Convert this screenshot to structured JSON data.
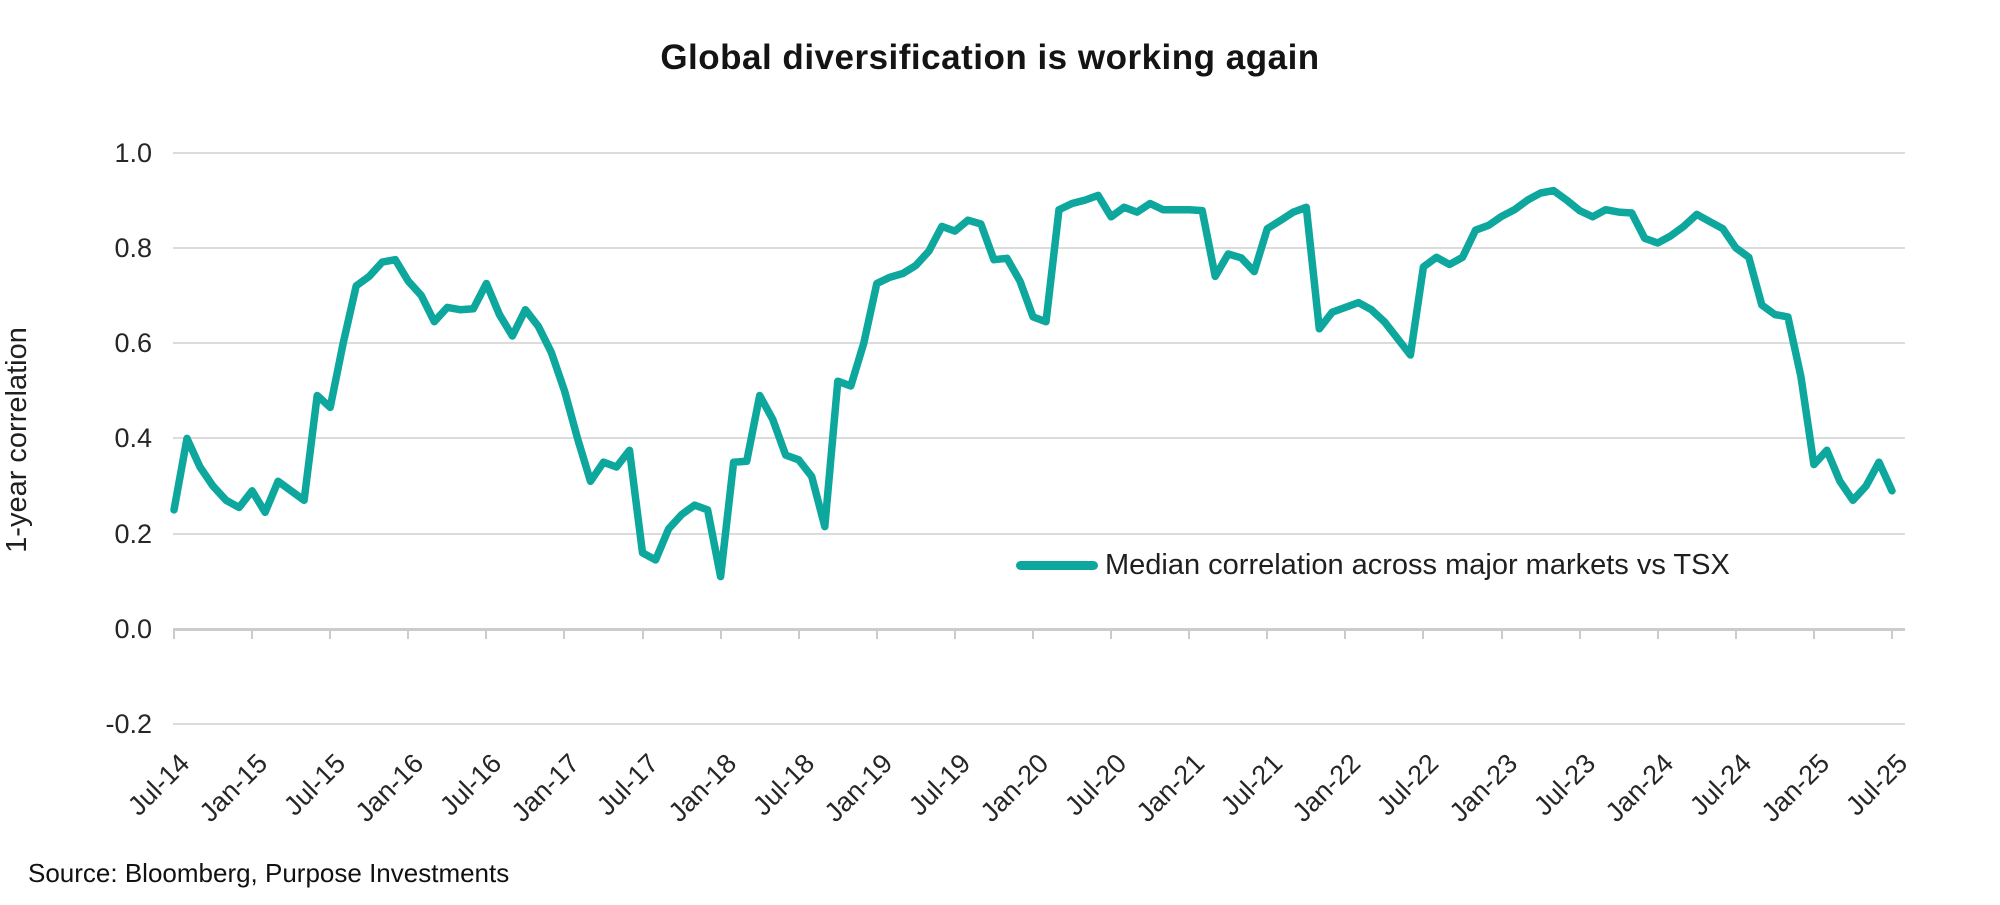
{
  "title": "Global diversification is working again",
  "y_axis": {
    "label": "1-year correlation",
    "tick_labels": [
      "1.0",
      "0.8",
      "0.6",
      "0.4",
      "0.2",
      "0.0",
      "-0.2"
    ]
  },
  "x_axis": {
    "tick_labels": [
      "Jul-14",
      "Jan-15",
      "Jul-15",
      "Jan-16",
      "Jul-16",
      "Jan-17",
      "Jul-17",
      "Jan-18",
      "Jul-18",
      "Jan-19",
      "Jul-19",
      "Jan-20",
      "Jul-20",
      "Jan-21",
      "Jul-21",
      "Jan-22",
      "Jul-22",
      "Jan-23",
      "Jul-23",
      "Jan-24",
      "Jul-24",
      "Jan-25",
      "Jul-25"
    ]
  },
  "legend": {
    "label": "Median correlation across major markets vs TSX",
    "position": "inside-lower-right"
  },
  "source": "Source: Bloomberg, Purpose Investments",
  "colors": {
    "line": "#0ea79d",
    "grid": "#dcdcdc",
    "axis": "#cccccc",
    "text": "#1f1f1f"
  },
  "chart_data": {
    "type": "line",
    "title": "Global diversification is working again",
    "ylabel": "1-year correlation",
    "xlabel": "",
    "ylim": [
      -0.2,
      1.0
    ],
    "y_ticks": [
      1.0,
      0.8,
      0.6,
      0.4,
      0.2,
      0.0,
      -0.2
    ],
    "grid": "horizontal",
    "frequency": "monthly",
    "x_start": "Jul-2014",
    "x_end": "Jul-2025",
    "x_tick_labels": [
      "Jul-14",
      "Jan-15",
      "Jul-15",
      "Jan-16",
      "Jul-16",
      "Jan-17",
      "Jul-17",
      "Jan-18",
      "Jul-18",
      "Jan-19",
      "Jul-19",
      "Jan-20",
      "Jul-20",
      "Jan-21",
      "Jul-21",
      "Jan-22",
      "Jul-22",
      "Jan-23",
      "Jul-23",
      "Jan-24",
      "Jul-24",
      "Jan-25",
      "Jul-25"
    ],
    "series": [
      {
        "name": "Median correlation across major markets vs TSX",
        "values": [
          0.25,
          0.4,
          0.34,
          0.3,
          0.27,
          0.255,
          0.29,
          0.245,
          0.31,
          0.29,
          0.27,
          0.49,
          0.465,
          0.6,
          0.72,
          0.74,
          0.77,
          0.775,
          0.73,
          0.7,
          0.645,
          0.675,
          0.67,
          0.672,
          0.725,
          0.66,
          0.615,
          0.67,
          0.635,
          0.58,
          0.5,
          0.4,
          0.31,
          0.35,
          0.34,
          0.375,
          0.16,
          0.145,
          0.21,
          0.24,
          0.26,
          0.25,
          0.11,
          0.35,
          0.352,
          0.49,
          0.44,
          0.365,
          0.355,
          0.32,
          0.215,
          0.52,
          0.51,
          0.6,
          0.725,
          0.738,
          0.746,
          0.763,
          0.793,
          0.845,
          0.835,
          0.858,
          0.85,
          0.775,
          0.778,
          0.73,
          0.655,
          0.645,
          0.88,
          0.893,
          0.9,
          0.91,
          0.865,
          0.885,
          0.875,
          0.893,
          0.88,
          0.88,
          0.88,
          0.878,
          0.74,
          0.787,
          0.779,
          0.75,
          0.84,
          0.857,
          0.875,
          0.885,
          0.63,
          0.665,
          0.675,
          0.685,
          0.67,
          0.645,
          0.61,
          0.575,
          0.76,
          0.78,
          0.765,
          0.78,
          0.837,
          0.847,
          0.866,
          0.88,
          0.9,
          0.915,
          0.92,
          0.9,
          0.878,
          0.865,
          0.88,
          0.875,
          0.873,
          0.82,
          0.81,
          0.825,
          0.845,
          0.87,
          0.855,
          0.84,
          0.8,
          0.78,
          0.68,
          0.66,
          0.655,
          0.53,
          0.345,
          0.375,
          0.31,
          0.27,
          0.3,
          0.35,
          0.29
        ]
      }
    ]
  }
}
